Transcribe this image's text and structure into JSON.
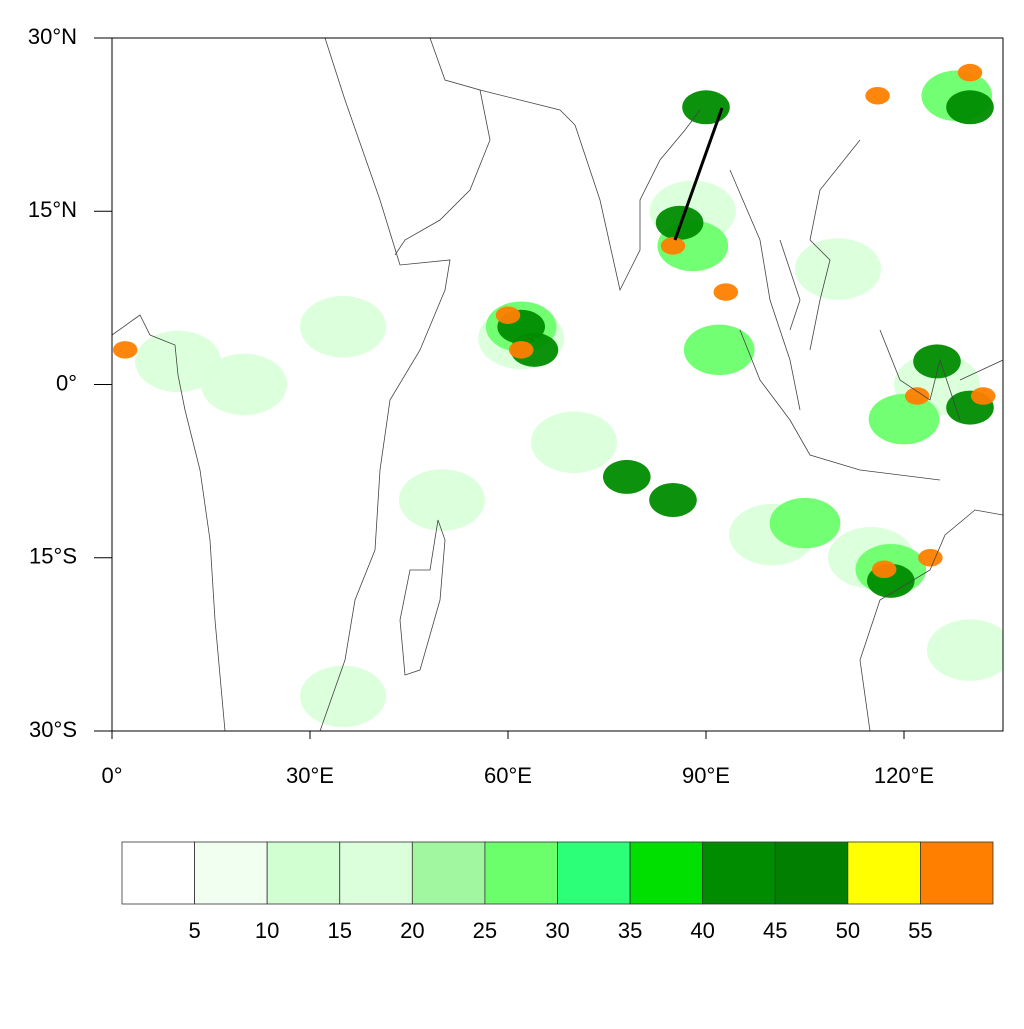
{
  "chart_data": {
    "type": "contour-map",
    "xlim": [
      0,
      135
    ],
    "ylim": [
      -30,
      30
    ],
    "xticks": [
      {
        "value": 0,
        "label": "0°"
      },
      {
        "value": 30,
        "label": "30°E"
      },
      {
        "value": 60,
        "label": "60°E"
      },
      {
        "value": 90,
        "label": "90°E"
      },
      {
        "value": 120,
        "label": "120°E"
      }
    ],
    "yticks": [
      {
        "value": -30,
        "label": "30°S"
      },
      {
        "value": -15,
        "label": "15°S"
      },
      {
        "value": 0,
        "label": "0°"
      },
      {
        "value": 15,
        "label": "15°N"
      },
      {
        "value": 30,
        "label": "30°N"
      }
    ],
    "levels": [
      5,
      10,
      15,
      20,
      25,
      30,
      35,
      40,
      45,
      50,
      55
    ],
    "colors": [
      "#ffffff",
      "#f0fff0",
      "#d2ffd2",
      "#daffda",
      "#a0f7a0",
      "#6cff6c",
      "#2cff78",
      "#00e000",
      "#008c00",
      "#007f00",
      "#ffff00",
      "#ff8000"
    ],
    "field": [
      {
        "lon": 20,
        "lat": 0,
        "value": 15
      },
      {
        "lon": 35,
        "lat": 5,
        "value": 15
      },
      {
        "lon": 62,
        "lat": 4,
        "value": 15
      },
      {
        "lon": 88,
        "lat": 15,
        "value": 15
      },
      {
        "lon": 110,
        "lat": 10,
        "value": 15
      },
      {
        "lon": 125,
        "lat": 0,
        "value": 15
      },
      {
        "lon": 100,
        "lat": -13,
        "value": 15
      },
      {
        "lon": 115,
        "lat": -15,
        "value": 15
      },
      {
        "lon": 70,
        "lat": -5,
        "value": 15
      },
      {
        "lon": 50,
        "lat": -10,
        "value": 15
      },
      {
        "lon": 10,
        "lat": 2,
        "value": 15
      },
      {
        "lon": 35,
        "lat": -27,
        "value": 15
      },
      {
        "lon": 130,
        "lat": -23,
        "value": 15
      },
      {
        "lon": 62,
        "lat": 5,
        "value": 25
      },
      {
        "lon": 88,
        "lat": 12,
        "value": 25
      },
      {
        "lon": 120,
        "lat": -3,
        "value": 25
      },
      {
        "lon": 128,
        "lat": 25,
        "value": 25
      },
      {
        "lon": 105,
        "lat": -12,
        "value": 25
      },
      {
        "lon": 118,
        "lat": -16,
        "value": 25
      },
      {
        "lon": 92,
        "lat": 3,
        "value": 25
      },
      {
        "lon": 62,
        "lat": 5,
        "value": 40
      },
      {
        "lon": 64,
        "lat": 3,
        "value": 40
      },
      {
        "lon": 86,
        "lat": 14,
        "value": 40
      },
      {
        "lon": 125,
        "lat": 2,
        "value": 40
      },
      {
        "lon": 130,
        "lat": -2,
        "value": 40
      },
      {
        "lon": 118,
        "lat": -17,
        "value": 40
      },
      {
        "lon": 90,
        "lat": 24,
        "value": 40
      },
      {
        "lon": 130,
        "lat": 24,
        "value": 40
      },
      {
        "lon": 85,
        "lat": -10,
        "value": 40
      },
      {
        "lon": 78,
        "lat": -8,
        "value": 40
      },
      {
        "lon": 60,
        "lat": 6,
        "value": 55
      },
      {
        "lon": 62,
        "lat": 3,
        "value": 55
      },
      {
        "lon": 85,
        "lat": 12,
        "value": 55
      },
      {
        "lon": 93,
        "lat": 8,
        "value": 55
      },
      {
        "lon": 130,
        "lat": 27,
        "value": 55
      },
      {
        "lon": 117,
        "lat": -16,
        "value": 55
      },
      {
        "lon": 124,
        "lat": -15,
        "value": 55
      },
      {
        "lon": 132,
        "lat": -1,
        "value": 55
      },
      {
        "lon": 122,
        "lat": -1,
        "value": 55
      },
      {
        "lon": 2,
        "lat": 3,
        "value": 55
      },
      {
        "lon": 116,
        "lat": 25,
        "value": 55
      }
    ]
  }
}
